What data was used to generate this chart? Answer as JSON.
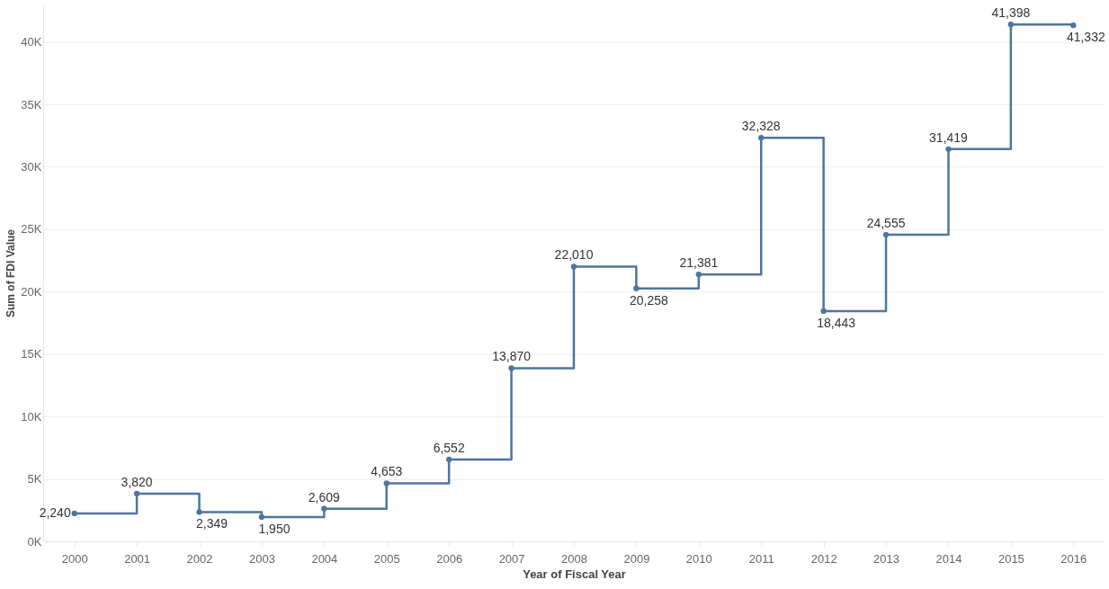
{
  "chart_data": {
    "type": "step",
    "xlabel": "Year of Fiscal Year",
    "ylabel": "Sum of FDI Value",
    "categories": [
      "2000",
      "2001",
      "2002",
      "2003",
      "2004",
      "2005",
      "2006",
      "2007",
      "2008",
      "2009",
      "2010",
      "2011",
      "2012",
      "2013",
      "2014",
      "2015",
      "2016"
    ],
    "series": [
      {
        "color": "#4f74a0",
        "values": [
          2240,
          3820,
          2349,
          1950,
          2609,
          4653,
          6552,
          13870,
          22010,
          20258,
          21381,
          32328,
          18443,
          24555,
          31419,
          41398,
          41332
        ]
      }
    ],
    "ylim": [
      0,
      43000
    ],
    "yticks": [
      {
        "value": 0,
        "label": "0K"
      },
      {
        "value": 5000,
        "label": "5K"
      },
      {
        "value": 10000,
        "label": "10K"
      },
      {
        "value": 15000,
        "label": "15K"
      },
      {
        "value": 20000,
        "label": "20K"
      },
      {
        "value": 25000,
        "label": "25K"
      },
      {
        "value": 30000,
        "label": "30K"
      },
      {
        "value": 35000,
        "label": "35K"
      },
      {
        "value": 40000,
        "label": "40K"
      }
    ],
    "grid": "y",
    "marker": "circle",
    "line_style": "solid",
    "value_labels": [
      "2,240",
      "3,820",
      "2,349",
      "1,950",
      "2,609",
      "4,653",
      "6,552",
      "13,870",
      "22,010",
      "20,258",
      "21,381",
      "32,328",
      "18,443",
      "24,555",
      "31,419",
      "41,398",
      "41,332"
    ]
  }
}
